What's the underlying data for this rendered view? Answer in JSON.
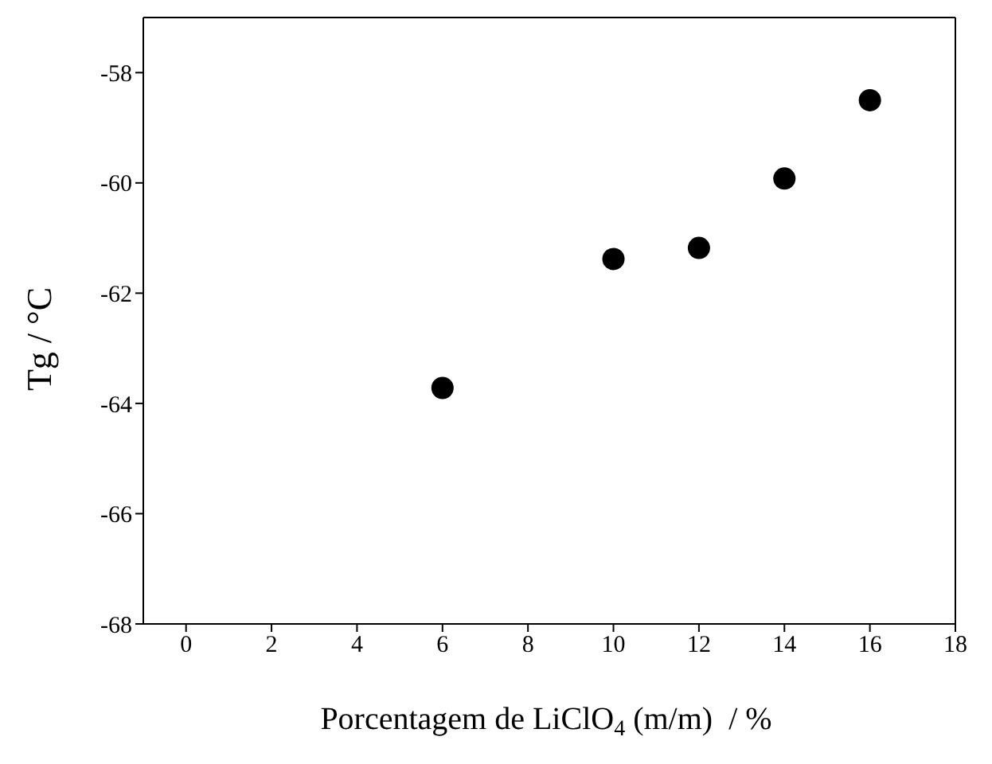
{
  "chart_data": {
    "type": "scatter",
    "xlabel": "Porcentagem de LiClO$_{4}$ (m/m)  / %",
    "ylabel": "Tg / °C",
    "x": [
      6,
      10,
      12,
      14,
      16
    ],
    "series": [
      {
        "color": "#000000",
        "values": [
          -63.72,
          -61.38,
          -61.18,
          -59.92,
          -58.5
        ]
      }
    ],
    "xlim": [
      -1,
      18
    ],
    "xticks": [
      0,
      2,
      4,
      6,
      8,
      10,
      12,
      14,
      16,
      18
    ],
    "ylim": [
      -68,
      -57
    ],
    "yticks": [
      -68,
      -66,
      -64,
      -62,
      -60,
      -58
    ],
    "marker": "circle"
  }
}
